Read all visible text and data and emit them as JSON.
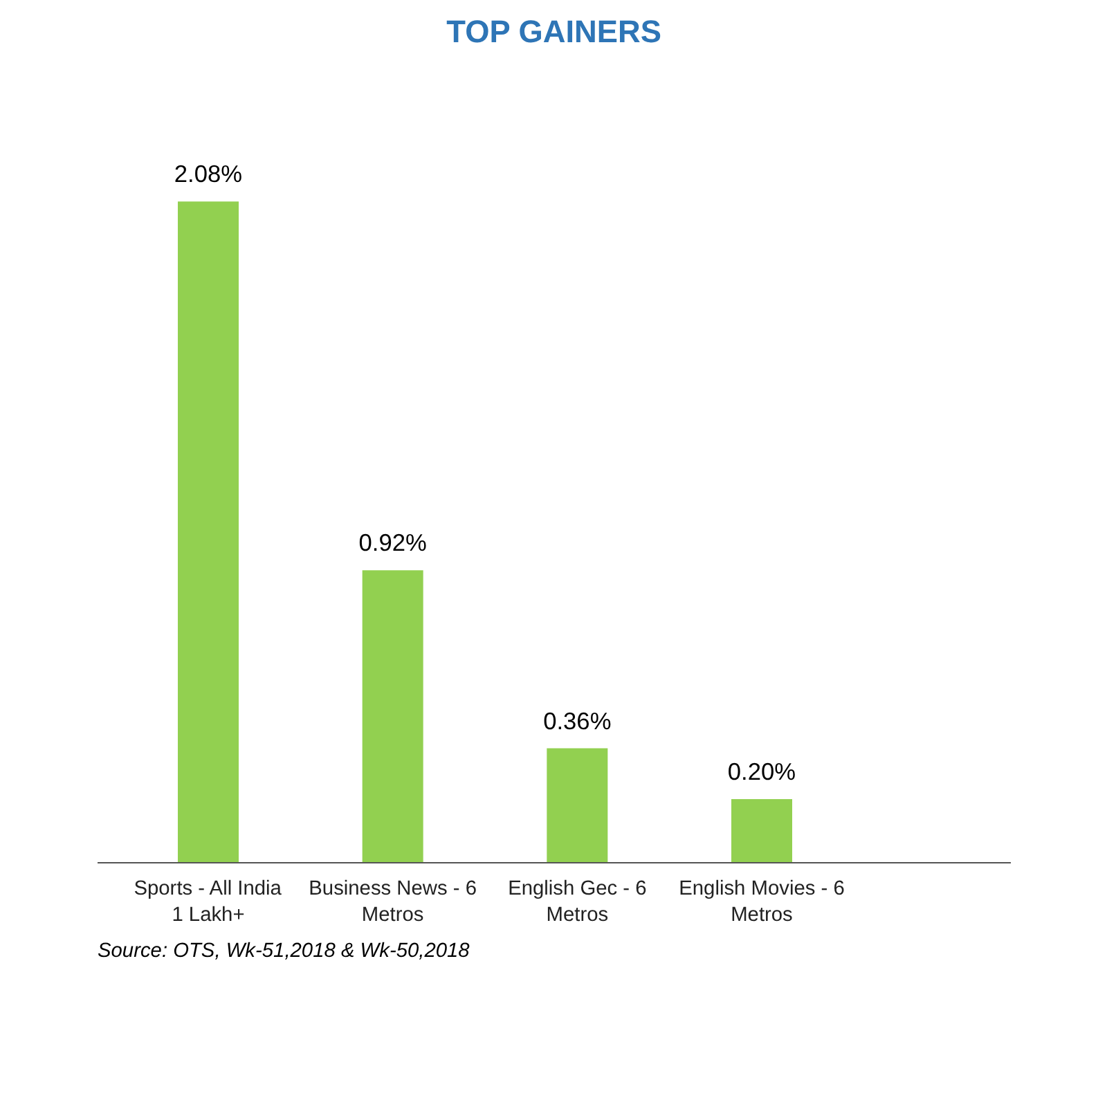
{
  "chart_data": {
    "type": "bar",
    "title": "TOP GAINERS",
    "categories": [
      "Sports - All India 1 Lakh+",
      "Business News - 6 Metros",
      "English Gec - 6 Metros",
      "English Movies - 6 Metros"
    ],
    "values": [
      2.08,
      0.92,
      0.36,
      0.2
    ],
    "value_labels": [
      "2.08%",
      "0.92%",
      "0.36%",
      "0.20%"
    ],
    "color": "#92d050",
    "grid": false,
    "annotations": [
      "Source: OTS, Wk-51,2018 & Wk-50,2018"
    ]
  }
}
